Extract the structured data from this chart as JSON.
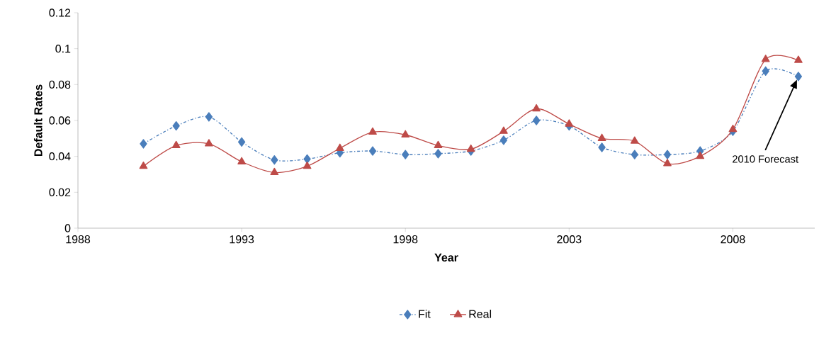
{
  "chart_data": {
    "type": "line",
    "xlabel": "Year",
    "ylabel": "Default Rates",
    "x": [
      1990,
      1991,
      1992,
      1993,
      1994,
      1995,
      1996,
      1997,
      1998,
      1999,
      2000,
      2001,
      2002,
      2003,
      2004,
      2005,
      2006,
      2007,
      2008,
      2009,
      2010
    ],
    "series": [
      {
        "name": "Fit",
        "color": "#4a7ebb",
        "marker": "diamond",
        "line_style": "dashdot",
        "values": [
          0.047,
          0.057,
          0.062,
          0.048,
          0.038,
          0.0385,
          0.042,
          0.043,
          0.041,
          0.0415,
          0.043,
          0.049,
          0.06,
          0.057,
          0.045,
          0.041,
          0.041,
          0.043,
          0.054,
          0.0875,
          0.0845
        ]
      },
      {
        "name": "Real",
        "color": "#be4b48",
        "marker": "triangle",
        "line_style": "solid",
        "values": [
          0.0345,
          0.046,
          0.047,
          0.037,
          0.031,
          0.0345,
          0.0445,
          0.0535,
          0.052,
          0.046,
          0.044,
          0.054,
          0.0665,
          0.058,
          0.05,
          0.0485,
          0.036,
          0.04,
          0.055,
          0.094,
          0.0935
        ]
      }
    ],
    "xlim": [
      1988,
      2010.5
    ],
    "ylim": [
      0,
      0.12
    ],
    "xticks": [
      1988,
      1993,
      1998,
      2003,
      2008
    ],
    "yticks": [
      0,
      0.02,
      0.04,
      0.06,
      0.08,
      0.1,
      0.12
    ],
    "annotations": [
      "2010 Forecast"
    ],
    "grid": false,
    "legend": "bottom"
  }
}
